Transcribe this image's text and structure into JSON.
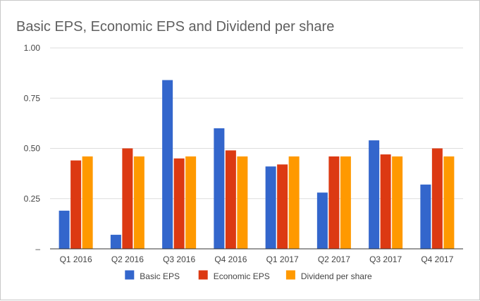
{
  "chart_data": {
    "type": "bar",
    "title": "Basic EPS, Economic EPS and Dividend per share",
    "categories": [
      "Q1 2016",
      "Q2 2016",
      "Q3 2016",
      "Q4 2016",
      "Q1 2017",
      "Q2 2017",
      "Q3 2017",
      "Q4 2017"
    ],
    "series": [
      {
        "name": "Basic EPS",
        "color": "#3366cc",
        "values": [
          0.19,
          0.07,
          0.84,
          0.6,
          0.41,
          0.28,
          0.54,
          0.32
        ]
      },
      {
        "name": "Economic EPS",
        "color": "#dc3912",
        "values": [
          0.44,
          0.5,
          0.45,
          0.49,
          0.42,
          0.46,
          0.47,
          0.5
        ]
      },
      {
        "name": "Dividend per share",
        "color": "#ff9900",
        "values": [
          0.46,
          0.46,
          0.46,
          0.46,
          0.46,
          0.46,
          0.46,
          0.46
        ]
      }
    ],
    "yticks": [
      "–",
      "0.25",
      "0.50",
      "0.75",
      "1.00"
    ],
    "ylim": [
      0,
      1.0
    ],
    "grid": true,
    "legend": "bottom"
  }
}
